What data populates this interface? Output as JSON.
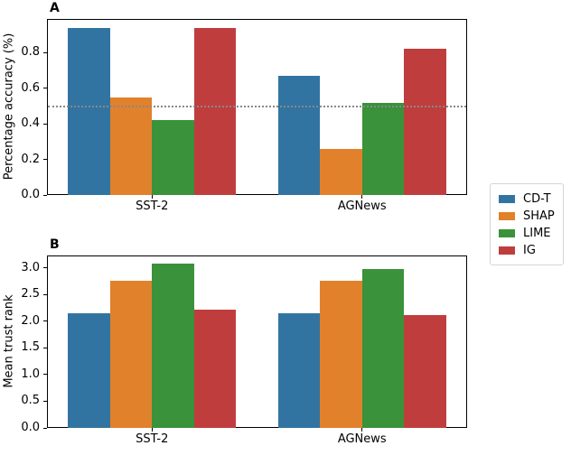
{
  "figure": {
    "background": "#ffffff",
    "panel_a_label": "A",
    "panel_b_label": "B"
  },
  "palette": {
    "blue": "#3274a1",
    "orange": "#e1812c",
    "green": "#3a923a",
    "red": "#c03d3e",
    "reference_gray": "#888888"
  },
  "chart_data": [
    {
      "type": "bar",
      "panel_label": "A",
      "title": "",
      "xlabel": "",
      "ylabel": "Percentage accuracy (%)",
      "categories": [
        "SST-2",
        "AGNews"
      ],
      "series": [
        {
          "name": "CD-T",
          "color": "#3274a1",
          "values": [
            0.94,
            0.67
          ]
        },
        {
          "name": "SHAP",
          "color": "#e1812c",
          "values": [
            0.55,
            0.26
          ]
        },
        {
          "name": "LIME",
          "color": "#3a923a",
          "values": [
            0.42,
            0.52
          ]
        },
        {
          "name": "IG",
          "color": "#c03d3e",
          "values": [
            0.94,
            0.82
          ]
        }
      ],
      "ylim": [
        0,
        0.99
      ],
      "yticks": [
        0.0,
        0.2,
        0.4,
        0.6,
        0.8
      ],
      "ytick_labels": [
        "0.0",
        "0.2",
        "0.4",
        "0.6",
        "0.8"
      ],
      "reference_line": {
        "y": 0.5,
        "style": "dotted",
        "color": "#888888"
      },
      "grid": false,
      "legend_position": "outside-right"
    },
    {
      "type": "bar",
      "panel_label": "B",
      "title": "",
      "xlabel": "",
      "ylabel": "Mean trust rank",
      "categories": [
        "SST-2",
        "AGNews"
      ],
      "series": [
        {
          "name": "CD-T",
          "color": "#3274a1",
          "values": [
            2.15,
            2.14
          ]
        },
        {
          "name": "SHAP",
          "color": "#e1812c",
          "values": [
            2.76,
            2.76
          ]
        },
        {
          "name": "LIME",
          "color": "#3a923a",
          "values": [
            3.08,
            2.97
          ]
        },
        {
          "name": "IG",
          "color": "#c03d3e",
          "values": [
            2.21,
            2.11
          ]
        }
      ],
      "ylim": [
        0,
        3.23
      ],
      "yticks": [
        0.0,
        0.5,
        1.0,
        1.5,
        2.0,
        2.5,
        3.0
      ],
      "ytick_labels": [
        "0.0",
        "0.5",
        "1.0",
        "1.5",
        "2.0",
        "2.5",
        "3.0"
      ],
      "grid": false
    }
  ],
  "legend": {
    "entries": [
      {
        "label": "CD-T",
        "color": "#3274a1"
      },
      {
        "label": "SHAP",
        "color": "#e1812c"
      },
      {
        "label": "LIME",
        "color": "#3a923a"
      },
      {
        "label": "IG",
        "color": "#c03d3e"
      }
    ]
  }
}
